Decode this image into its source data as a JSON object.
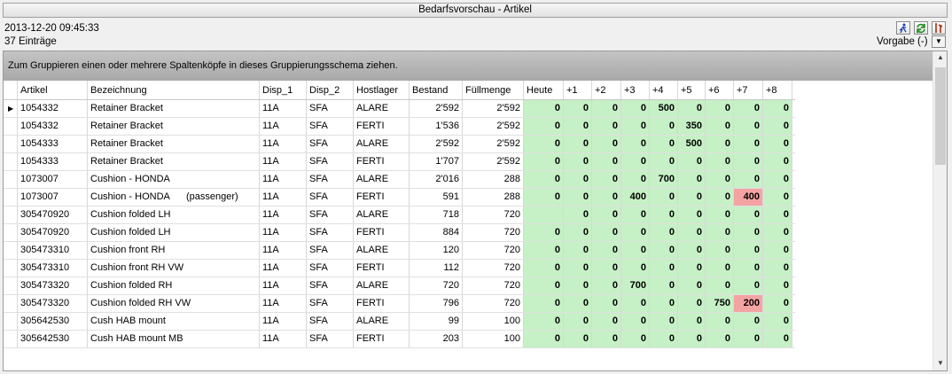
{
  "window": {
    "title": "Bedarfsvorschau - Artikel"
  },
  "meta": {
    "date": "2013-12-20 09:45:33",
    "count": "37 Einträge"
  },
  "toolbar": {
    "icons": [
      "running-man-icon",
      "refresh-icon",
      "tools-icon"
    ]
  },
  "layout_select": {
    "label": "Vorgabe (-)",
    "dropdown_icon": "▼"
  },
  "group_panel": {
    "hint": "Zum Gruppieren einen oder mehrere Spaltenköpfe in dieses Gruppierungsschema ziehen."
  },
  "colors": {
    "green_cell": "#c6f0c6",
    "red_cell": "#f4a3a3"
  },
  "columns": [
    "Artikel",
    "Bezeichnung",
    "Disp_1",
    "Disp_2",
    "Hostlager",
    "Bestand",
    "Füllmenge",
    "Heute",
    "+1",
    "+2",
    "+3",
    "+4",
    "+5",
    "+6",
    "+7",
    "+8"
  ],
  "rows": [
    {
      "artikel": "1054332",
      "bez": "Retainer Bracket",
      "bez_extra": "",
      "disp1": "11A",
      "disp2": "SFA",
      "host": "ALARE",
      "bestand": "2'592",
      "fuell": "2'592",
      "days": [
        "0",
        "0",
        "0",
        "0",
        "500",
        "0",
        "0",
        "0",
        "0"
      ],
      "red": []
    },
    {
      "artikel": "1054332",
      "bez": "Retainer Bracket",
      "bez_extra": "",
      "disp1": "11A",
      "disp2": "SFA",
      "host": "FERTI",
      "bestand": "1'536",
      "fuell": "2'592",
      "days": [
        "0",
        "0",
        "0",
        "0",
        "0",
        "350",
        "0",
        "0",
        "0"
      ],
      "red": []
    },
    {
      "artikel": "1054333",
      "bez": "Retainer Bracket",
      "bez_extra": "",
      "disp1": "11A",
      "disp2": "SFA",
      "host": "ALARE",
      "bestand": "2'592",
      "fuell": "2'592",
      "days": [
        "0",
        "0",
        "0",
        "0",
        "0",
        "500",
        "0",
        "0",
        "0"
      ],
      "red": []
    },
    {
      "artikel": "1054333",
      "bez": "Retainer Bracket",
      "bez_extra": "",
      "disp1": "11A",
      "disp2": "SFA",
      "host": "FERTI",
      "bestand": "1'707",
      "fuell": "2'592",
      "days": [
        "0",
        "0",
        "0",
        "0",
        "0",
        "0",
        "0",
        "0",
        "0"
      ],
      "red": []
    },
    {
      "artikel": "1073007",
      "bez": "Cushion - HONDA",
      "bez_extra": "",
      "disp1": "11A",
      "disp2": "SFA",
      "host": "ALARE",
      "bestand": "2'016",
      "fuell": "288",
      "days": [
        "0",
        "0",
        "0",
        "0",
        "700",
        "0",
        "0",
        "0",
        "0"
      ],
      "red": []
    },
    {
      "artikel": "1073007",
      "bez": "Cushion - HONDA",
      "bez_extra": "(passenger)",
      "disp1": "11A",
      "disp2": "SFA",
      "host": "FERTI",
      "bestand": "591",
      "fuell": "288",
      "days": [
        "0",
        "0",
        "0",
        "400",
        "0",
        "0",
        "0",
        "400",
        "0"
      ],
      "red": [
        7
      ]
    },
    {
      "artikel": "305470920",
      "bez": "Cushion folded LH",
      "bez_extra": "",
      "disp1": "11A",
      "disp2": "SFA",
      "host": "ALARE",
      "bestand": "718",
      "fuell": "720",
      "days": [
        "",
        "0",
        "0",
        "0",
        "0",
        "0",
        "0",
        "0",
        "0"
      ],
      "red": []
    },
    {
      "artikel": "305470920",
      "bez": "Cushion folded LH",
      "bez_extra": "",
      "disp1": "11A",
      "disp2": "SFA",
      "host": "FERTI",
      "bestand": "884",
      "fuell": "720",
      "days": [
        "0",
        "0",
        "0",
        "0",
        "0",
        "0",
        "0",
        "0",
        "0"
      ],
      "red": []
    },
    {
      "artikel": "305473310",
      "bez": "Cushion front RH",
      "bez_extra": "",
      "disp1": "11A",
      "disp2": "SFA",
      "host": "ALARE",
      "bestand": "120",
      "fuell": "720",
      "days": [
        "0",
        "0",
        "0",
        "0",
        "0",
        "0",
        "0",
        "0",
        "0"
      ],
      "red": []
    },
    {
      "artikel": "305473310",
      "bez": "Cushion front RH VW",
      "bez_extra": "",
      "disp1": "11A",
      "disp2": "SFA",
      "host": "FERTI",
      "bestand": "112",
      "fuell": "720",
      "days": [
        "0",
        "0",
        "0",
        "0",
        "0",
        "0",
        "0",
        "0",
        "0"
      ],
      "red": []
    },
    {
      "artikel": "305473320",
      "bez": "Cushion folded RH",
      "bez_extra": "",
      "disp1": "11A",
      "disp2": "SFA",
      "host": "ALARE",
      "bestand": "720",
      "fuell": "720",
      "days": [
        "0",
        "0",
        "0",
        "700",
        "0",
        "0",
        "0",
        "0",
        "0"
      ],
      "red": []
    },
    {
      "artikel": "305473320",
      "bez": "Cushion folded RH VW",
      "bez_extra": "",
      "disp1": "11A",
      "disp2": "SFA",
      "host": "FERTI",
      "bestand": "796",
      "fuell": "720",
      "days": [
        "0",
        "0",
        "0",
        "0",
        "0",
        "0",
        "750",
        "200",
        "0"
      ],
      "red": [
        7
      ]
    },
    {
      "artikel": "305642530",
      "bez": "Cush HAB mount",
      "bez_extra": "",
      "disp1": "11A",
      "disp2": "SFA",
      "host": "ALARE",
      "bestand": "99",
      "fuell": "100",
      "days": [
        "0",
        "0",
        "0",
        "0",
        "0",
        "0",
        "0",
        "0",
        "0"
      ],
      "red": []
    },
    {
      "artikel": "305642530",
      "bez": "Cush HAB mount MB",
      "bez_extra": "",
      "disp1": "11A",
      "disp2": "SFA",
      "host": "FERTI",
      "bestand": "203",
      "fuell": "100",
      "days": [
        "0",
        "0",
        "0",
        "0",
        "0",
        "0",
        "0",
        "0",
        "0"
      ],
      "red": []
    }
  ]
}
